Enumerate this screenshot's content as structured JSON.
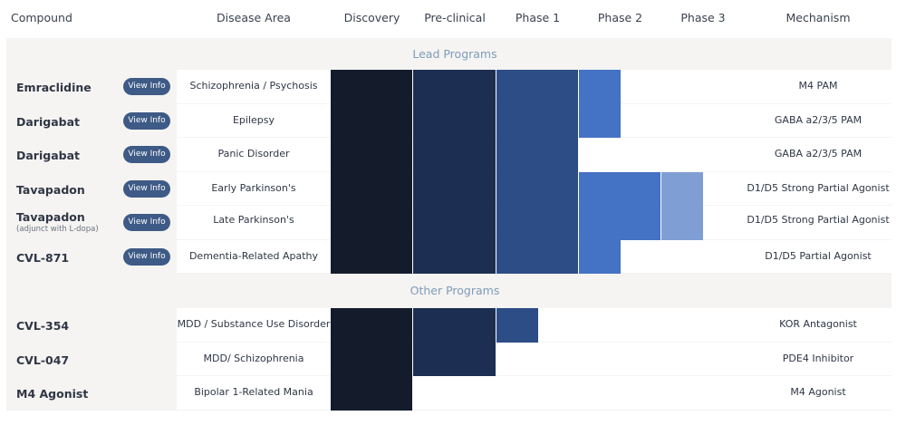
{
  "headers": {
    "compound": "Compound",
    "disease_area": "Disease Area",
    "discovery": "Discovery",
    "preclinical": "Pre-clinical",
    "phase1": "Phase 1",
    "phase2": "Phase 2",
    "phase3": "Phase 3",
    "mechanism": "Mechanism"
  },
  "sections": {
    "lead": "Lead Programs",
    "other": "Other Programs"
  },
  "view_info_label": "View Info",
  "colors": {
    "discovery": "#141c2c",
    "preclinical": "#1c2f52",
    "phase1": "#2d4d86",
    "phase2": "#4472c4",
    "phase3": "#7f9fd4",
    "button": "#3e5a86"
  },
  "lead_rows": [
    {
      "compound": "Emraclidine",
      "sub": "",
      "disease": "Schizophrenia / Psychosis",
      "mechanism": "M4 PAM",
      "progress_phases": 3.5
    },
    {
      "compound": "Darigabat",
      "sub": "",
      "disease": "Epilepsy",
      "mechanism": "GABA a2/3/5 PAM",
      "progress_phases": 3.5
    },
    {
      "compound": "Darigabat",
      "sub": "",
      "disease": "Panic Disorder",
      "mechanism": "GABA a2/3/5 PAM",
      "progress_phases": 3.0
    },
    {
      "compound": "Tavapadon",
      "sub": "",
      "disease": "Early Parkinson's",
      "mechanism": "D1/D5 Strong Partial Agonist",
      "progress_phases": 4.5
    },
    {
      "compound": "Tavapadon",
      "sub": "(adjunct with L-dopa)",
      "disease": "Late Parkinson's",
      "mechanism": "D1/D5 Strong Partial Agonist",
      "progress_phases": 4.5
    },
    {
      "compound": "CVL-871",
      "sub": "",
      "disease": "Dementia-Related Apathy",
      "mechanism": "D1/D5 Partial Agonist",
      "progress_phases": 3.5
    }
  ],
  "other_rows": [
    {
      "compound": "CVL-354",
      "disease": "MDD / Substance Use Disorder",
      "mechanism": "KOR Antagonist",
      "progress_phases": 2.5
    },
    {
      "compound": "CVL-047",
      "disease": "MDD/ Schizophrenia",
      "mechanism": "PDE4 Inhibitor",
      "progress_phases": 2.0
    },
    {
      "compound": "M4 Agonist",
      "disease": "Bipolar 1-Related Mania",
      "mechanism": "M4 Agonist",
      "progress_phases": 1.0
    }
  ]
}
